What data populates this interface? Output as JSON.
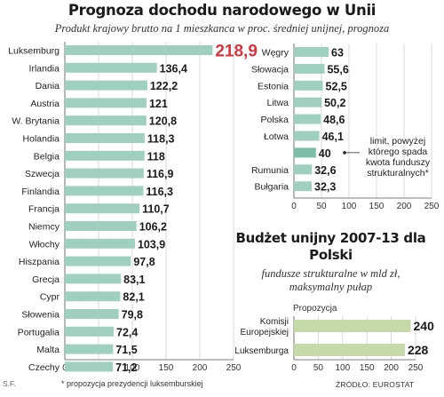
{
  "title": "Prognoza dochodu narodowego w Unii",
  "subtitle": "Produkt krajowy brutto na 1 mieszkanca w proc. średniej unijnej, prognoza",
  "footnote": "* propozycja prezydencji luksemburskiej",
  "initials": "S.F.",
  "source": "ŹRÓDŁO: EUROSTAT",
  "callout": "limit, powyżej którego spada kwota funduszy strukturalnych*",
  "colors": {
    "bar": "#9fd0bd",
    "highlight_bar": "#7dbfa6",
    "highlight_value": "#d8343f",
    "budget_bar": "#c6d9a8"
  },
  "chart_data": [
    {
      "type": "bar",
      "orientation": "horizontal",
      "categories": [
        "Luksemburg",
        "Irlandia",
        "Dania",
        "Austria",
        "W. Brytania",
        "Holandia",
        "Belgia",
        "Szwecja",
        "Finlandia",
        "Francja",
        "Niemcy",
        "Włochy",
        "Hiszpania",
        "Grecja",
        "Cypr",
        "Słowenia",
        "Portugalia",
        "Malta",
        "Czechy"
      ],
      "values": [
        218.9,
        136.4,
        122.2,
        121,
        120.8,
        118.3,
        118,
        116.9,
        116.3,
        110.7,
        106.2,
        103.9,
        97.8,
        83.1,
        82.1,
        79.8,
        72.4,
        71.5,
        71.2
      ],
      "value_labels": [
        "218,9",
        "136,4",
        "122,2",
        "121",
        "120,8",
        "118,3",
        "118",
        "116,9",
        "116,3",
        "110,7",
        "106,2",
        "103,9",
        "97,8",
        "83,1",
        "82,1",
        "79,8",
        "72,4",
        "71,5",
        "71,2"
      ],
      "xlim": [
        0,
        250
      ],
      "ticks": [
        "0",
        "50",
        "100",
        "150",
        "200",
        "250"
      ],
      "grid": true
    },
    {
      "type": "bar",
      "orientation": "horizontal",
      "categories": [
        "Węgry",
        "Słowacja",
        "Estonia",
        "Litwa",
        "Polska",
        "Łotwa",
        "",
        "Rumunia",
        "Bułgaria"
      ],
      "values": [
        63,
        55.6,
        52.5,
        50.2,
        48.6,
        46.1,
        40,
        32.6,
        32.3
      ],
      "value_labels": [
        "63",
        "55,6",
        "52,5",
        "50,2",
        "48,6",
        "46,1",
        "40",
        "32,6",
        "32,3"
      ],
      "xlim": [
        0,
        250
      ],
      "ticks": [
        "0",
        "50",
        "100",
        "150",
        "200",
        "250"
      ],
      "grid": true
    },
    {
      "type": "bar",
      "orientation": "horizontal",
      "title": "Budżet unijny 2007-13 dla Polski",
      "subtitle": "fundusze strukturalne w mld zł, maksymalny pułap",
      "group_label": "Propozycja",
      "categories": [
        "Komisji Europejskiej",
        "Luksemburga"
      ],
      "values": [
        240,
        228
      ],
      "value_labels": [
        "240",
        "228"
      ],
      "xlim": [
        0,
        250
      ],
      "ticks": [
        "0",
        "50",
        "100",
        "150",
        "200",
        "250"
      ],
      "grid": true
    }
  ]
}
